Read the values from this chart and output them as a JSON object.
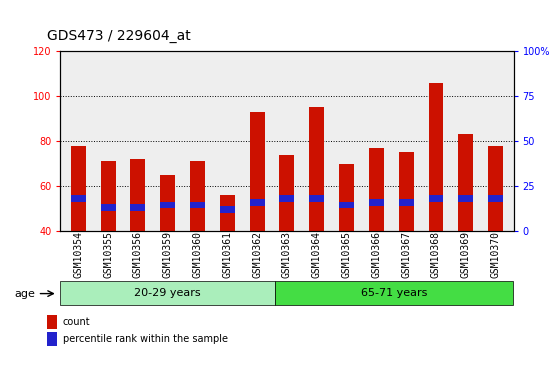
{
  "title": "GDS473 / 229604_at",
  "samples": [
    "GSM10354",
    "GSM10355",
    "GSM10356",
    "GSM10359",
    "GSM10360",
    "GSM10361",
    "GSM10362",
    "GSM10363",
    "GSM10364",
    "GSM10365",
    "GSM10366",
    "GSM10367",
    "GSM10368",
    "GSM10369",
    "GSM10370"
  ],
  "count_values": [
    78,
    71,
    72,
    65,
    71,
    56,
    93,
    74,
    95,
    70,
    77,
    75,
    106,
    83,
    78
  ],
  "percentile_bottom": [
    53,
    49,
    49,
    50,
    50,
    48,
    51,
    53,
    53,
    50,
    51,
    51,
    53,
    53,
    53
  ],
  "percentile_height": [
    3,
    3,
    3,
    3,
    3,
    3,
    3,
    3,
    3,
    3,
    3,
    3,
    3,
    3,
    3
  ],
  "ylim_left": [
    40,
    120
  ],
  "ylim_right": [
    0,
    100
  ],
  "yticks_left": [
    40,
    60,
    80,
    100,
    120
  ],
  "yticks_right": [
    0,
    25,
    50,
    75,
    100
  ],
  "ytick_labels_right": [
    "0",
    "25",
    "50",
    "75",
    "100%"
  ],
  "group1_label": "20-29 years",
  "group2_label": "65-71 years",
  "group1_count": 7,
  "group2_count": 8,
  "age_label": "age",
  "legend1": "count",
  "legend2": "percentile rank within the sample",
  "bar_color": "#CC1100",
  "percentile_color": "#2222CC",
  "group1_bg": "#AAEEBB",
  "group2_bg": "#44DD44",
  "bar_width": 0.5,
  "plot_bg": "#EEEEEE",
  "grid_color": "#000000",
  "title_fontsize": 10,
  "tick_fontsize": 7,
  "label_fontsize": 8
}
